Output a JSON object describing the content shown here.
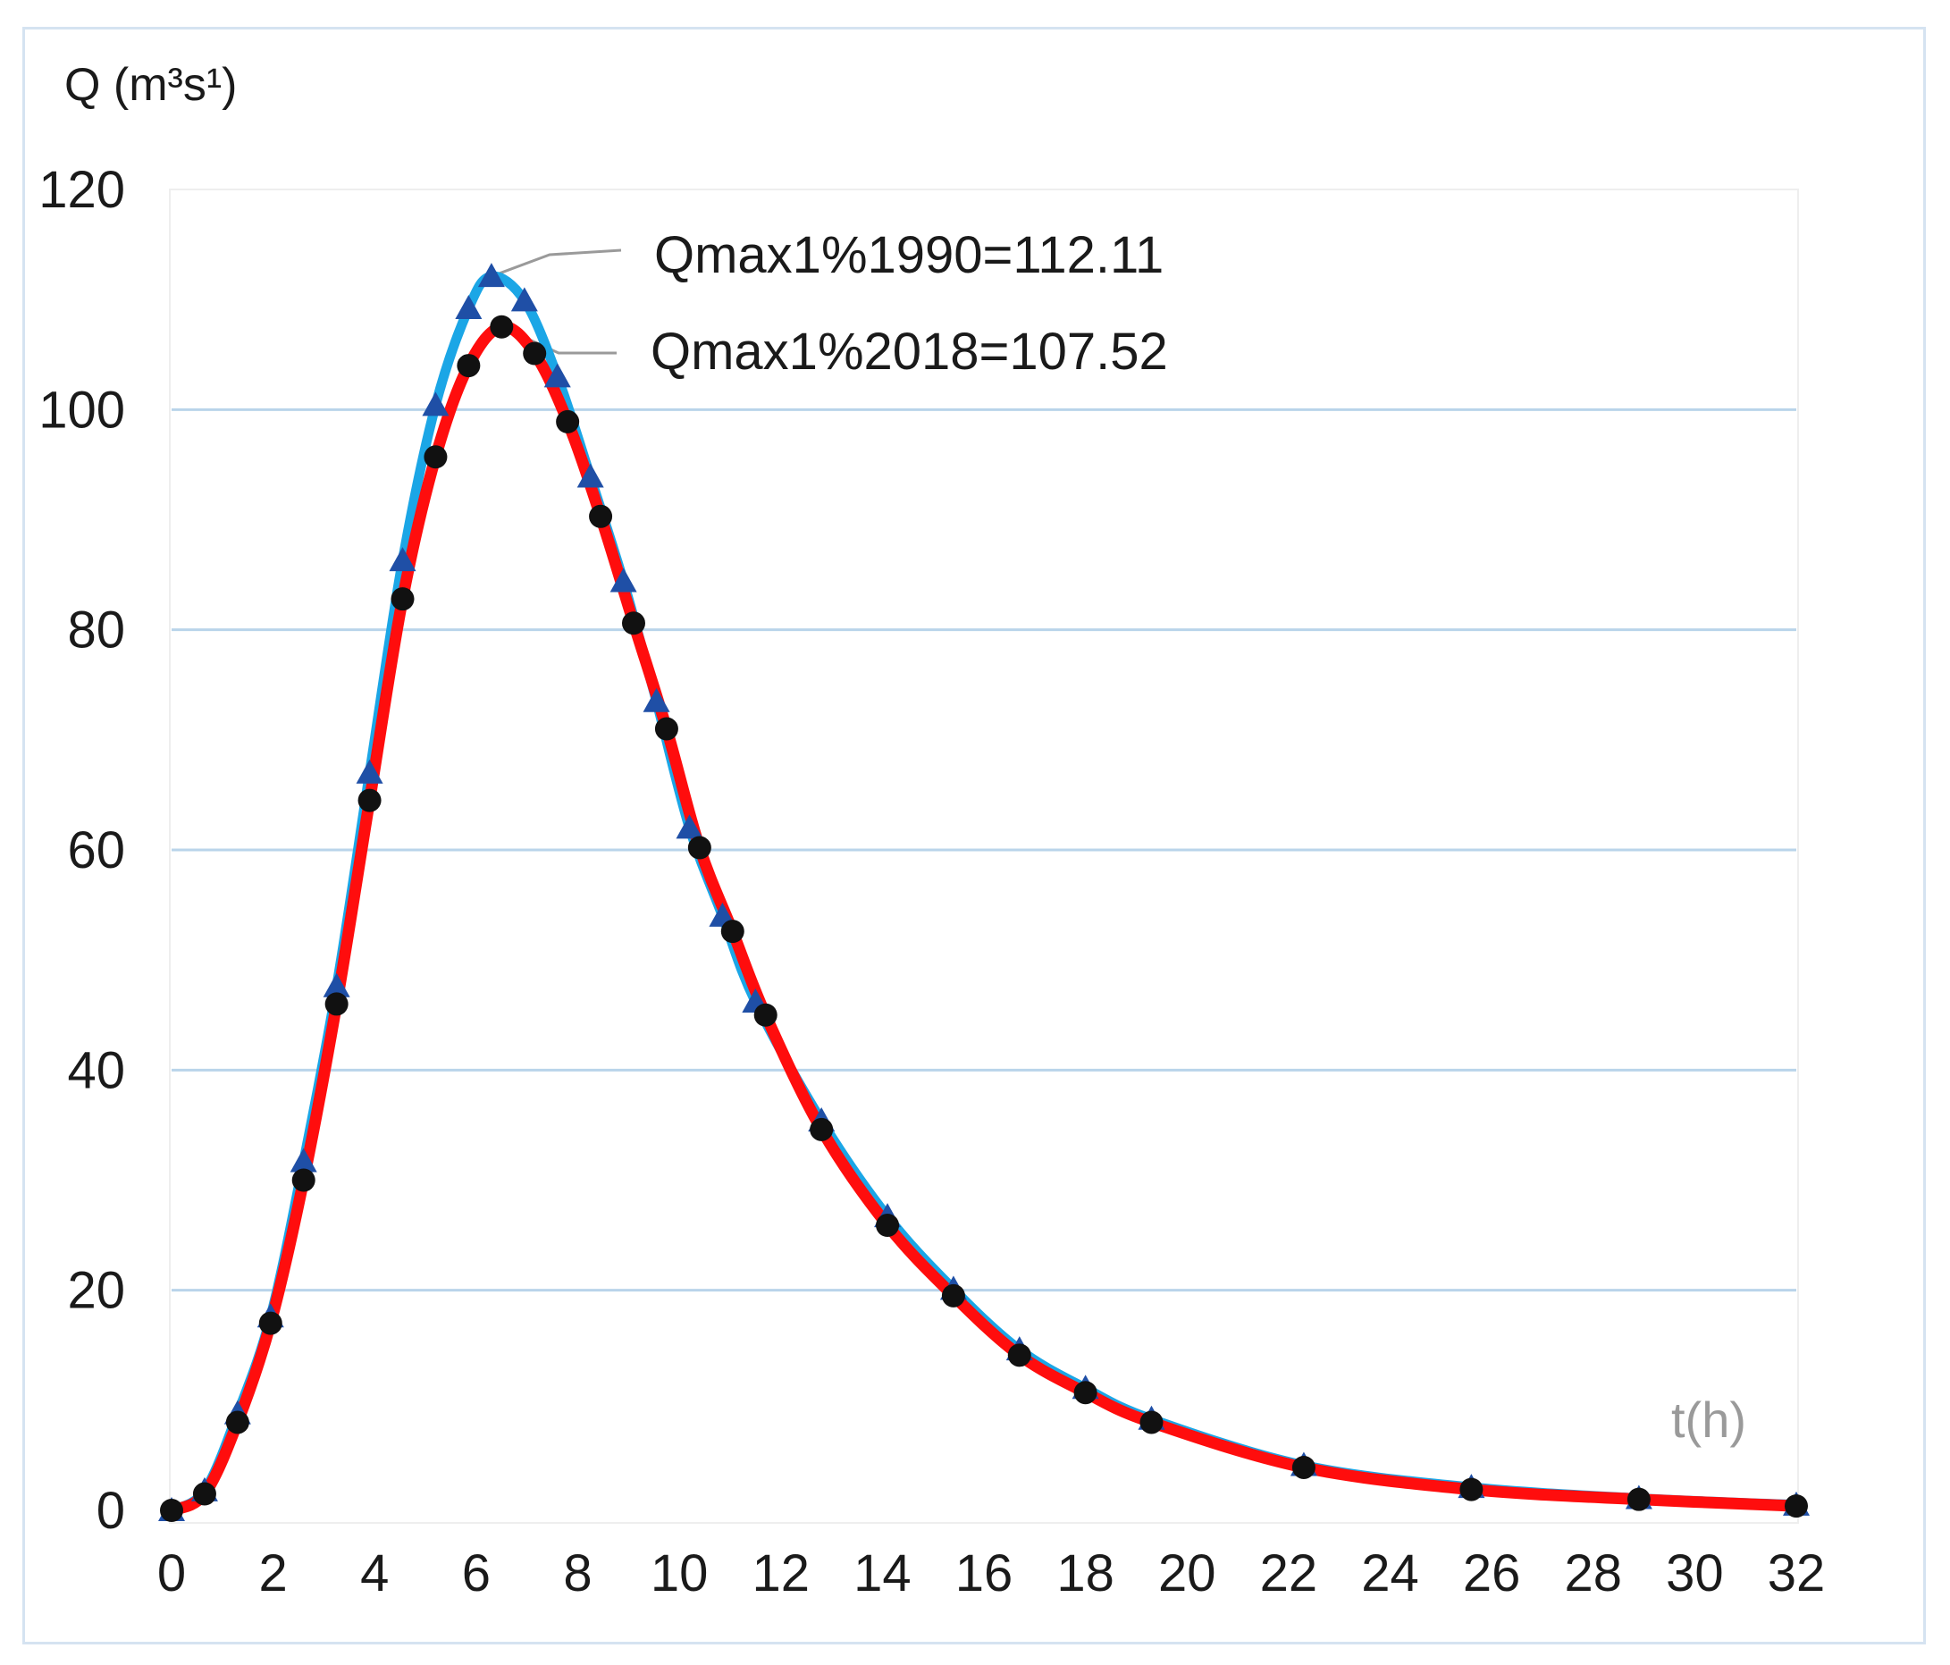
{
  "chart_data": {
    "type": "line",
    "ylabel": "Q (m³s¹)",
    "xlabel": "t(h)",
    "xlim": [
      0,
      32
    ],
    "ylim": [
      0,
      120
    ],
    "x_ticks": [
      0,
      2,
      4,
      6,
      8,
      10,
      12,
      14,
      16,
      18,
      20,
      22,
      24,
      26,
      28,
      30,
      32
    ],
    "y_ticks": [
      0,
      20,
      40,
      60,
      80,
      100,
      120
    ],
    "grid": "horizontal",
    "series": [
      {
        "key": "1990",
        "color": "#1ba6e6",
        "marker": "triangle",
        "marker_color": "#1f4fa6",
        "x": [
          0,
          0.65,
          1.3,
          1.95,
          2.6,
          3.25,
          3.9,
          4.55,
          5.2,
          5.85,
          6.3,
          6.95,
          7.6,
          8.25,
          8.9,
          9.55,
          10.2,
          10.85,
          11.5,
          12.8,
          14.1,
          15.4,
          16.7,
          18.0,
          19.3,
          22.3,
          25.6,
          28.9,
          32
        ],
        "y": [
          0,
          1.8,
          8.8,
          17.6,
          31.7,
          47.6,
          67.0,
          86.3,
          100.4,
          109.2,
          112.11,
          109.9,
          103.0,
          93.9,
          84.4,
          73.5,
          62.0,
          54.0,
          46.2,
          35.4,
          26.7,
          20.1,
          14.6,
          11.1,
          8.3,
          4.1,
          2.1,
          1.1,
          0.5
        ]
      },
      {
        "key": "2018",
        "color": "#ff0d0d",
        "marker": "circle",
        "marker_color": "#111111",
        "x": [
          0,
          0.65,
          1.3,
          1.95,
          2.6,
          3.25,
          3.9,
          4.55,
          5.2,
          5.85,
          6.5,
          7.15,
          7.8,
          8.45,
          9.1,
          9.75,
          10.4,
          11.05,
          11.7,
          12.8,
          14.1,
          15.4,
          16.7,
          18.0,
          19.3,
          22.3,
          25.6,
          28.9,
          32
        ],
        "y": [
          0,
          1.5,
          8.0,
          17.0,
          30.0,
          46.0,
          64.5,
          82.8,
          95.7,
          104.0,
          107.52,
          105.1,
          98.9,
          90.3,
          80.6,
          71.0,
          60.2,
          52.6,
          45.0,
          34.6,
          25.9,
          19.5,
          14.1,
          10.7,
          8.0,
          3.9,
          1.9,
          1.0,
          0.4
        ]
      }
    ],
    "annotations": [
      {
        "text": "Qmax1%1990=112.11",
        "x": 6.3,
        "y": 112.11
      },
      {
        "text": "Qmax1%2018=107.52",
        "x": 6.5,
        "y": 107.52
      }
    ]
  }
}
